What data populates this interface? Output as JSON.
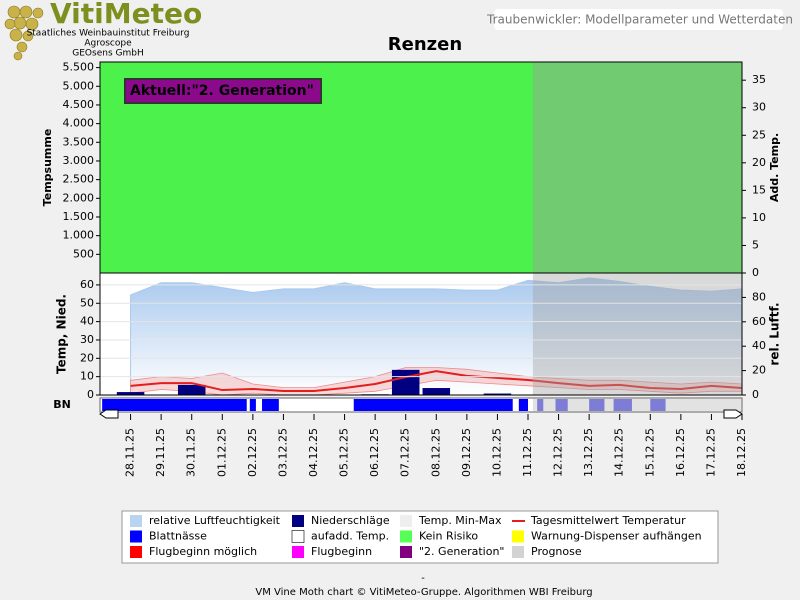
{
  "header": {
    "logo": "VitiMeteo",
    "org_lines": [
      "Staatliches Weinbauinstitut Freiburg",
      "Agroscope",
      "GEOsens GmbH"
    ],
    "page_title": "Traubenwickler: Modellparameter und Wetterdaten"
  },
  "chart_data": [
    {
      "type": "area",
      "title": "Renzen",
      "annotation": "Aktuell:\"2. Generation\"",
      "annotation_color": "#8b0a8b",
      "ylabel": "Tempsumme",
      "y2label": "Add. Temp.",
      "background_color": "#4cf14c",
      "ylim": [
        0,
        5650
      ],
      "yticks": [
        500,
        {
          "value": 1000,
          "label": "1.000"
        },
        {
          "value": 1500,
          "label": "1.500"
        },
        {
          "value": 2000,
          "label": "2.000"
        },
        {
          "value": 2500,
          "label": "2.500"
        },
        {
          "value": 3000,
          "label": "3.000"
        },
        {
          "value": 3500,
          "label": "3.500"
        },
        {
          "value": 4000,
          "label": "4.000"
        },
        {
          "value": 4500,
          "label": "4.500"
        },
        {
          "value": 5000,
          "label": "5.000"
        },
        {
          "value": 5500,
          "label": "5.500"
        }
      ],
      "y2lim": [
        0,
        38.3
      ],
      "y2ticks": [
        0,
        5,
        10,
        15,
        20,
        25,
        30,
        35
      ]
    },
    {
      "type": "combo",
      "ylabel": "Temp, Nied.",
      "y2label": "rel. Luftf.",
      "categories": [
        "28.11.25",
        "29.11.25",
        "30.11.25",
        "01.12.25",
        "02.12.25",
        "03.12.25",
        "04.12.25",
        "05.12.25",
        "06.12.25",
        "07.12.25",
        "08.12.25",
        "09.12.25",
        "10.12.25",
        "11.12.25",
        "12.12.25",
        "13.12.25",
        "14.12.25",
        "15.12.25",
        "16.12.25",
        "17.12.25",
        "18.12.25"
      ],
      "xlim": [
        -1,
        20
      ],
      "prognosis_start": 13.16,
      "prognosis_color": "#a0a0a0",
      "ylim": [
        0,
        66.5
      ],
      "yticks": [
        0,
        10,
        20,
        30,
        40,
        50,
        60
      ],
      "y2lim": [
        0,
        100
      ],
      "y2ticks": [
        0,
        20,
        40,
        60,
        80
      ],
      "grid": true,
      "series": [
        {
          "kind": "area",
          "axis": "y2",
          "color": "#a9c9ee",
          "values": [
            82,
            92,
            92,
            88,
            84,
            87,
            87,
            92,
            87,
            87,
            87,
            86,
            86,
            94,
            92,
            96,
            93,
            89,
            86,
            85,
            87
          ]
        },
        {
          "kind": "band",
          "color": "#f4b9b9",
          "low": [
            1,
            3,
            2,
            0,
            1,
            0,
            0,
            1,
            2,
            5,
            8,
            7,
            6,
            5,
            4,
            3,
            3,
            2,
            1,
            2,
            2
          ],
          "high": [
            8,
            10,
            9,
            12,
            6,
            4,
            4,
            7,
            10,
            15,
            15,
            14,
            12,
            10,
            9,
            8,
            8,
            7,
            6,
            7,
            6
          ]
        },
        {
          "kind": "bar",
          "color": "#000080",
          "values": [
            1.6,
            0,
            5.5,
            0,
            0,
            0,
            0,
            0,
            0.4,
            13.7,
            3.8,
            0,
            0.8,
            0,
            0,
            0,
            0,
            0,
            0,
            0,
            0
          ]
        },
        {
          "kind": "line",
          "color": "#e41e1e",
          "values": [
            5,
            6.5,
            6.5,
            2.7,
            3.3,
            2.2,
            2.2,
            3.8,
            6,
            9.8,
            13,
            10.4,
            9.3,
            8.2,
            6.5,
            5,
            5.5,
            3.8,
            3.3,
            5,
            3.8
          ]
        }
      ],
      "strip": {
        "label": "BN",
        "color": "#0000ff",
        "prognosis_color": "#6f6fee",
        "segments": [
          [
            -0.93,
            3.8
          ],
          [
            3.9,
            4.1
          ],
          [
            4.3,
            4.85
          ],
          [
            7.3,
            12.5
          ],
          [
            12.7,
            13.0
          ],
          [
            13.3,
            13.5
          ],
          [
            13.9,
            14.3
          ],
          [
            15.0,
            15.5
          ],
          [
            15.8,
            16.4
          ],
          [
            17.0,
            17.5
          ]
        ]
      }
    }
  ],
  "legend": [
    {
      "label": "relative Luftfeuchtigkeit",
      "color": "#b8d4f0"
    },
    {
      "label": "Niederschläge",
      "color": "#000080"
    },
    {
      "label": "Temp. Min-Max",
      "color": "#eeeeee"
    },
    {
      "label": "Tagesmittelwert Temperatur",
      "color": "#e41e1e",
      "kind": "line"
    },
    {
      "label": "Blattnässe",
      "color": "#0000ff"
    },
    {
      "label": "aufadd. Temp.",
      "color": "#ffffff"
    },
    {
      "label": "Kein Risiko",
      "color": "#55ff55"
    },
    {
      "label": "Warnung-Dispenser aufhängen",
      "color": "#ffff00"
    },
    {
      "label": "Flugbeginn möglich",
      "color": "#ff0000"
    },
    {
      "label": "Flugbeginn",
      "color": "#ff00ff"
    },
    {
      "label": "\"2. Generation\"",
      "color": "#800080"
    },
    {
      "label": "Prognose",
      "color": "#d3d3d3"
    }
  ],
  "footer": {
    "mark": "-",
    "text": "VM Vine Moth chart © VitiMeteo-Gruppe. Algorithmen WBI Freiburg"
  }
}
